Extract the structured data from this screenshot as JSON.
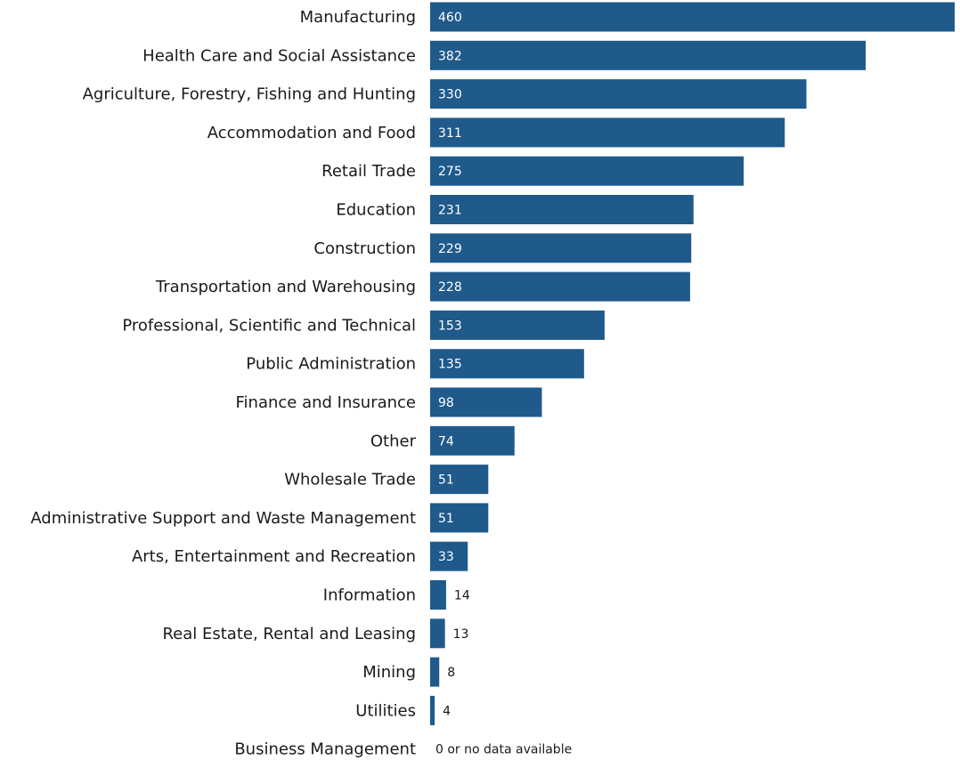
{
  "chart_data": {
    "type": "bar",
    "orientation": "horizontal",
    "categories": [
      "Manufacturing",
      "Health Care and Social Assistance",
      "Agriculture, Forestry, Fishing and Hunting",
      "Accommodation and Food",
      "Retail Trade",
      "Education",
      "Construction",
      "Transportation and Warehousing",
      "Professional, Scientific and Technical",
      "Public Administration",
      "Finance and Insurance",
      "Other",
      "Wholesale Trade",
      "Administrative Support and Waste Management",
      "Arts, Entertainment and Recreation",
      "Information",
      "Real Estate, Rental and Leasing",
      "Mining",
      "Utilities",
      "Business Management"
    ],
    "values": [
      460,
      382,
      330,
      311,
      275,
      231,
      229,
      228,
      153,
      135,
      98,
      74,
      51,
      51,
      33,
      14,
      13,
      8,
      4,
      0
    ],
    "data_labels": [
      "460",
      "382",
      "330",
      "311",
      "275",
      "231",
      "229",
      "228",
      "153",
      "135",
      "98",
      "74",
      "51",
      "51",
      "33",
      "14",
      "13",
      "8",
      "4",
      "0 or no data available"
    ],
    "xlim": [
      0,
      460
    ],
    "bar_color": "#1f5a8b",
    "grid": false,
    "legend": "none"
  }
}
